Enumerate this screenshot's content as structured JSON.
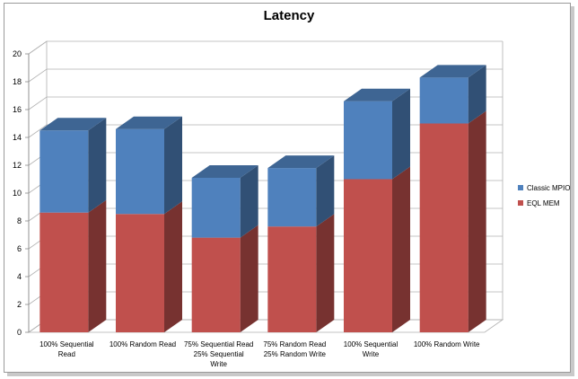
{
  "chart_data": {
    "type": "bar",
    "stacked": true,
    "title": "Latency",
    "categories": [
      [
        "100% Sequential",
        "Read"
      ],
      [
        "100% Random Read"
      ],
      [
        "75% Sequential Read",
        "25% Sequential",
        "Write"
      ],
      [
        "75% Random Read",
        "25% Random Write"
      ],
      [
        "100% Sequential",
        "Write"
      ],
      [
        "100% Random Write"
      ]
    ],
    "series": [
      {
        "name": "EQL MEM",
        "color": "#c0504d",
        "values": [
          8.6,
          8.5,
          6.8,
          7.6,
          11.0,
          15.0
        ]
      },
      {
        "name": "Classic MPIO",
        "color": "#4f81bd",
        "values": [
          5.9,
          6.1,
          4.3,
          4.2,
          5.6,
          3.3
        ]
      }
    ],
    "ylim": [
      0,
      20
    ],
    "yticks": [
      0,
      2,
      4,
      6,
      8,
      10,
      12,
      14,
      16,
      18,
      20
    ],
    "grid": true,
    "legend": "right",
    "legend_entries": [
      "Classic MPIO",
      "EQL MEM"
    ]
  }
}
